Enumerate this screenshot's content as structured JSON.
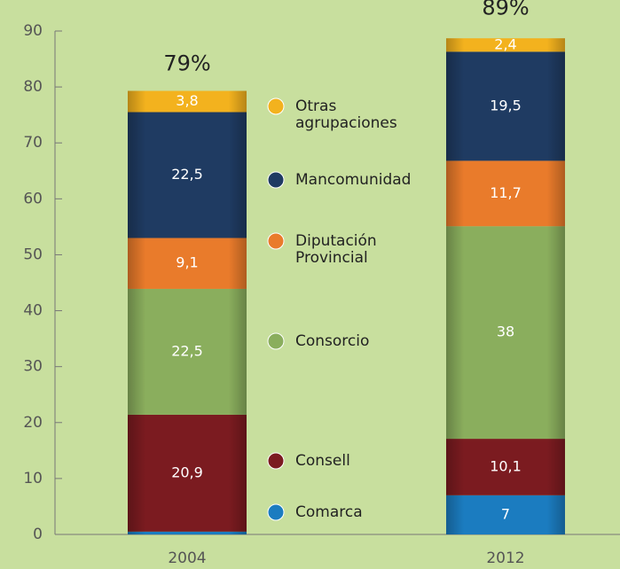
{
  "chart_data": {
    "type": "stacked_bar",
    "categories": [
      "2004",
      "2012"
    ],
    "series": [
      {
        "name": "Comarca",
        "color": "#1b7cc0",
        "values": [
          0.5,
          7
        ],
        "value_labels": [
          null,
          "7"
        ]
      },
      {
        "name": "Consell",
        "color": "#7b1b20",
        "values": [
          20.9,
          10.1
        ],
        "value_labels": [
          "20,9",
          "10,1"
        ]
      },
      {
        "name": "Consorcio",
        "color": "#8aae5d",
        "values": [
          22.5,
          38
        ],
        "value_labels": [
          "22,5",
          "38"
        ]
      },
      {
        "name": "Diputación Provincial",
        "color": "#e97b2b",
        "values": [
          9.1,
          11.7
        ],
        "value_labels": [
          "9,1",
          "11,7"
        ]
      },
      {
        "name": "Mancomunidad",
        "color": "#1f3b62",
        "values": [
          22.5,
          19.5
        ],
        "value_labels": [
          "22,5",
          "19,5"
        ]
      },
      {
        "name": "Otras agrupaciones",
        "color": "#f3b21e",
        "values": [
          3.8,
          2.4
        ],
        "value_labels": [
          "3,8",
          "2,4"
        ]
      }
    ],
    "totals": [
      79,
      89
    ],
    "total_labels": [
      "79%",
      "89%"
    ],
    "ylim": [
      0,
      90
    ],
    "yticks": [
      0,
      10,
      20,
      30,
      40,
      50,
      60,
      70,
      80,
      90
    ]
  }
}
